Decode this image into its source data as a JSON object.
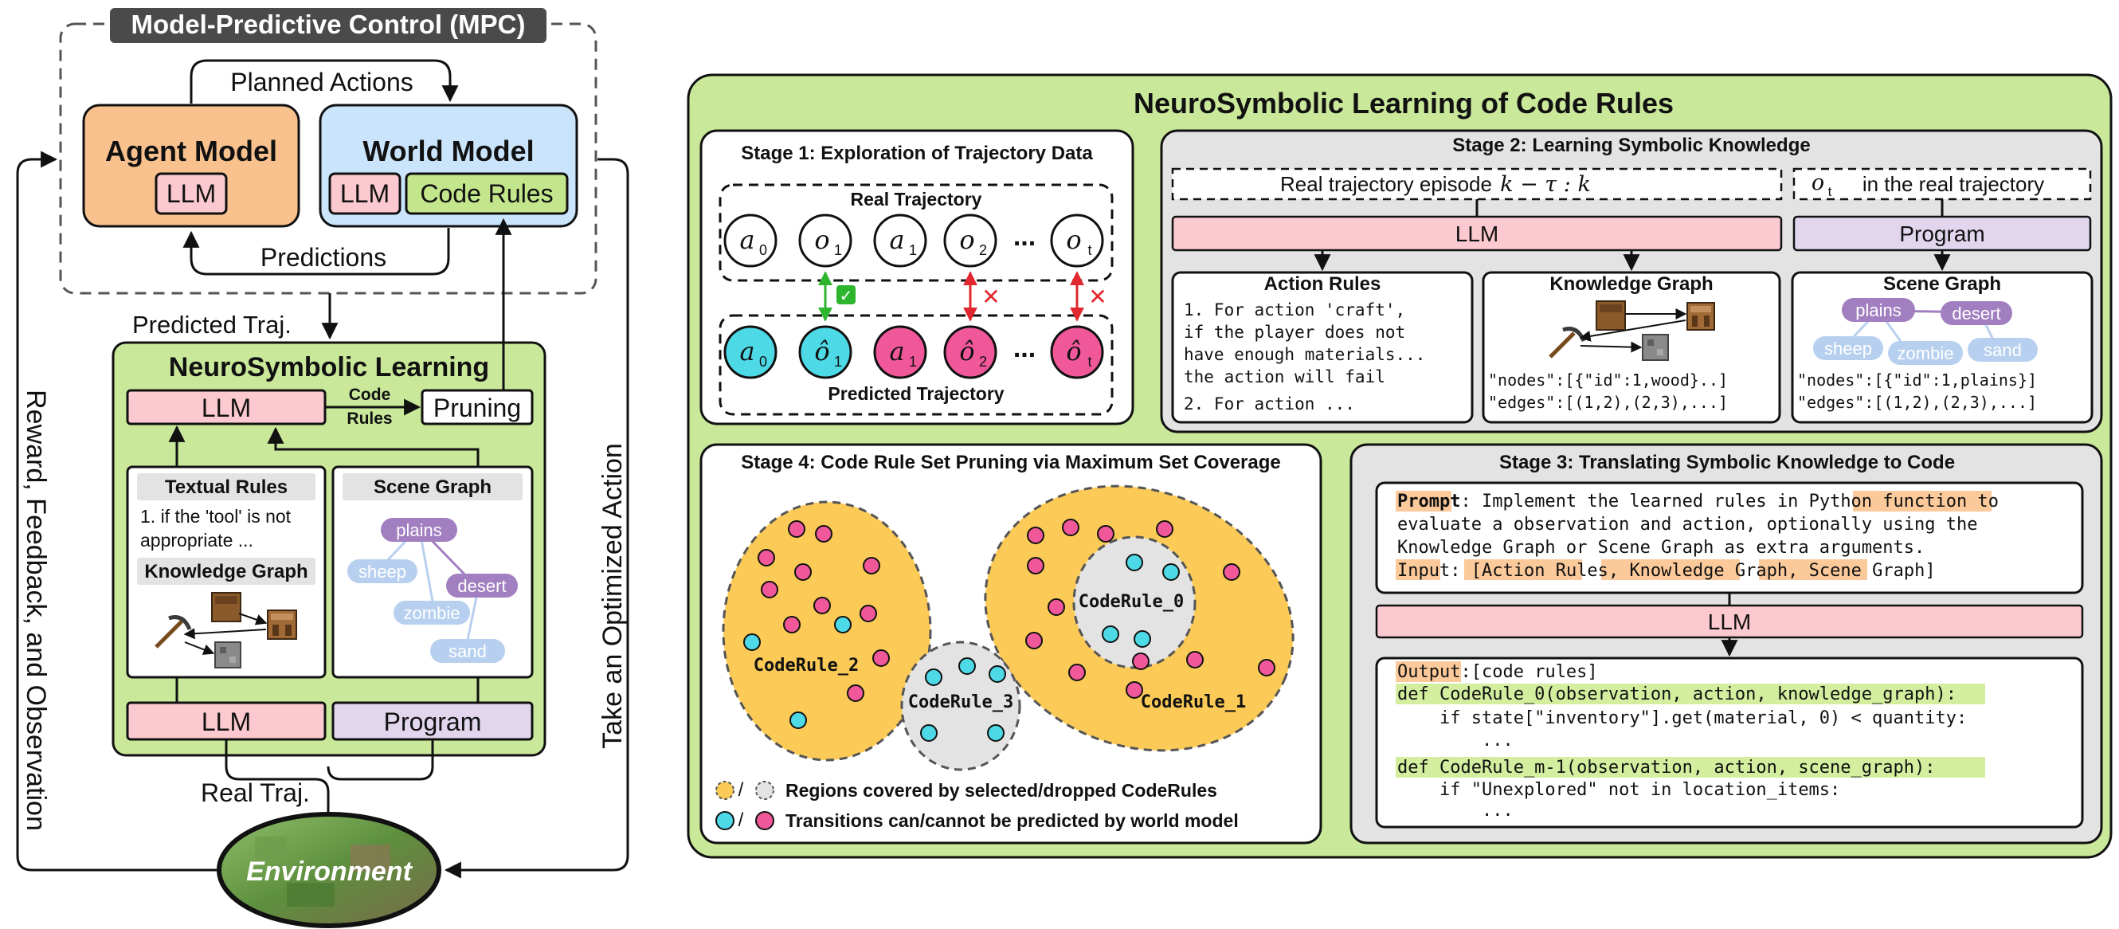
{
  "mpc": {
    "title": "Model-Predictive Control (MPC)",
    "planned_actions": "Planned Actions",
    "predictions": "Predictions",
    "agent_model": {
      "title": "Agent Model",
      "llm": "LLM"
    },
    "world_model": {
      "title": "World Model",
      "llm": "LLM",
      "code_rules": "Code Rules"
    }
  },
  "left_flow": {
    "predicted_traj": "Predicted Traj.",
    "real_traj": "Real Traj.",
    "reward_feedback": "Reward, Feedback, and Observation",
    "take_action": "Take an Optimized Action",
    "environment": "Environment"
  },
  "nsl_small": {
    "title": "NeuroSymbolic Learning",
    "llm_top": "LLM",
    "code_label_1": "Code",
    "code_label_2": "Rules",
    "pruning": "Pruning",
    "textual_rules": {
      "title": "Textual Rules",
      "line1": "1. if the 'tool' is not",
      "line2": "appropriate ..."
    },
    "knowledge_graph": "Knowledge Graph",
    "scene_graph": {
      "title": "Scene Graph",
      "nodes": [
        "plains",
        "desert",
        "sheep",
        "zombie",
        "sand"
      ]
    },
    "llm_bottom": "LLM",
    "program": "Program"
  },
  "main": {
    "title": "NeuroSymbolic Learning of Code Rules",
    "stage1": {
      "title": "Stage 1: Exploration of Trajectory Data",
      "real_label": "Real Trajectory",
      "predicted_label": "Predicted Trajectory",
      "real_nodes": [
        "a",
        "o",
        "a",
        "o",
        "o"
      ],
      "real_subs": [
        "0",
        "1",
        "1",
        "2",
        "t"
      ],
      "pred_nodes": [
        "a",
        "ô",
        "a",
        "ô",
        "ô"
      ],
      "pred_subs": [
        "0",
        "1",
        "1",
        "2",
        "t"
      ],
      "ellipsis": "...",
      "check": "✓",
      "cross": "✕",
      "colors": {
        "cyan": "#4dd9e6",
        "pink": "#f0589a",
        "green": "#2db52d",
        "red": "#e0282e"
      }
    },
    "stage2": {
      "title": "Stage 2: Learning Symbolic Knowledge",
      "episode_prefix": "Real trajectory episode",
      "episode_math": "k − τ : k",
      "ot_math": "o",
      "ot_sub": "t",
      "ot_suffix": "in the real trajectory",
      "llm": "LLM",
      "program": "Program",
      "action_rules": {
        "title": "Action Rules",
        "lines": [
          "1. For action 'craft',",
          "if the player does not",
          "have enough materials...",
          "the action will fail",
          "2. For action ..."
        ]
      },
      "knowledge_graph": {
        "title": "Knowledge Graph",
        "nodes_line": "\"nodes\":[{\"id\":1,wood}..]",
        "edges_line": "\"edges\":[(1,2),(2,3),...]"
      },
      "scene_graph": {
        "title": "Scene Graph",
        "nodes": [
          "plains",
          "desert",
          "sheep",
          "zombie",
          "sand"
        ],
        "nodes_line": "\"nodes\":[{\"id\":1,plains}]",
        "edges_line": "\"edges\":[(1,2),(2,3),...]"
      }
    },
    "stage3": {
      "title": "Stage 3: Translating Symbolic Knowledge to Code",
      "prompt_label": "Prompt",
      "prompt_l1a": ": Implement the learned rules in ",
      "prompt_hl": "Python function",
      "prompt_l1b": " to",
      "prompt_l2": "evaluate a observation and action, optionally using the",
      "prompt_l3": "Knowledge Graph or Scene Graph as extra arguments.",
      "input_label": "Input",
      "input_open": ": [",
      "input_items": [
        "Action Rules",
        "Knowledge Graph",
        "Scene Graph"
      ],
      "input_close": "]",
      "llm": "LLM",
      "output_label": "Output",
      "output_rest": ":[code rules]",
      "code_lines": [
        "def CodeRule_0(observation, action, knowledge_graph):",
        "    if state[\"inventory\"].get(material, 0) < quantity:",
        "        ...",
        "def CodeRule_m-1(observation, action, scene_graph):",
        "    if \"Unexplored\" not in location_items:",
        "        ..."
      ]
    },
    "stage4": {
      "title": "Stage 4: Code Rule Set Pruning via Maximum Set Coverage",
      "rules": [
        "CodeRule_2",
        "CodeRule_3",
        "CodeRule_0",
        "CodeRule_1"
      ],
      "legend1": "Regions covered by selected/dropped CodeRules",
      "legend2": "Transitions can/cannot be predicted by world model",
      "slash": "/"
    }
  },
  "colors": {
    "orange": "#f9c18e",
    "blue": "#c9e4fb",
    "green_bg": "#c9e89a",
    "pink": "#fbc9cf",
    "lime": "#c3e58c",
    "lavender": "#e1d6ee",
    "gray_panel": "#e3e3e3",
    "yellow_ellipse": "#fbca57",
    "dark_title": "#4a4a4a"
  }
}
